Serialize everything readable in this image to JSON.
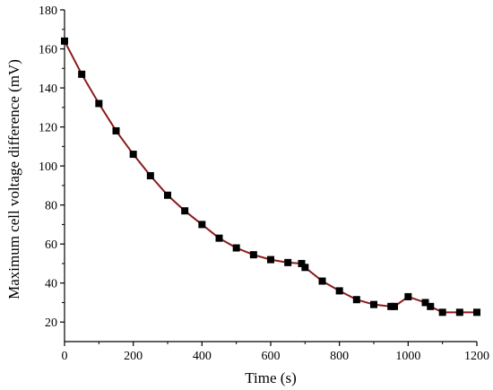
{
  "chart_data": {
    "type": "line",
    "title": "",
    "xlabel": "Time (s)",
    "ylabel": "Maximum cell voltage difference (mV)",
    "xlim": [
      0,
      1200
    ],
    "ylim": [
      10,
      180
    ],
    "xticks": [
      0,
      200,
      400,
      600,
      800,
      1000,
      1200
    ],
    "yticks": [
      20,
      40,
      60,
      80,
      100,
      120,
      140,
      160,
      180
    ],
    "grid": false,
    "legend": "none",
    "series": [
      {
        "line_color": "#8b1a1a",
        "marker_color": "#000000",
        "marker": "square",
        "points": [
          [
            0,
            164
          ],
          [
            50,
            147
          ],
          [
            100,
            132
          ],
          [
            150,
            118
          ],
          [
            200,
            106
          ],
          [
            250,
            95
          ],
          [
            300,
            85
          ],
          [
            350,
            77
          ],
          [
            400,
            70
          ],
          [
            450,
            63
          ],
          [
            500,
            58
          ],
          [
            550,
            54.5
          ],
          [
            600,
            52
          ],
          [
            650,
            50.5
          ],
          [
            690,
            50
          ],
          [
            700,
            48
          ],
          [
            750,
            41
          ],
          [
            800,
            36
          ],
          [
            850,
            31.5
          ],
          [
            900,
            29
          ],
          [
            950,
            28
          ],
          [
            960,
            28
          ],
          [
            1000,
            33
          ],
          [
            1050,
            30
          ],
          [
            1065,
            28
          ],
          [
            1100,
            25
          ],
          [
            1150,
            25
          ],
          [
            1200,
            25
          ]
        ]
      }
    ]
  }
}
